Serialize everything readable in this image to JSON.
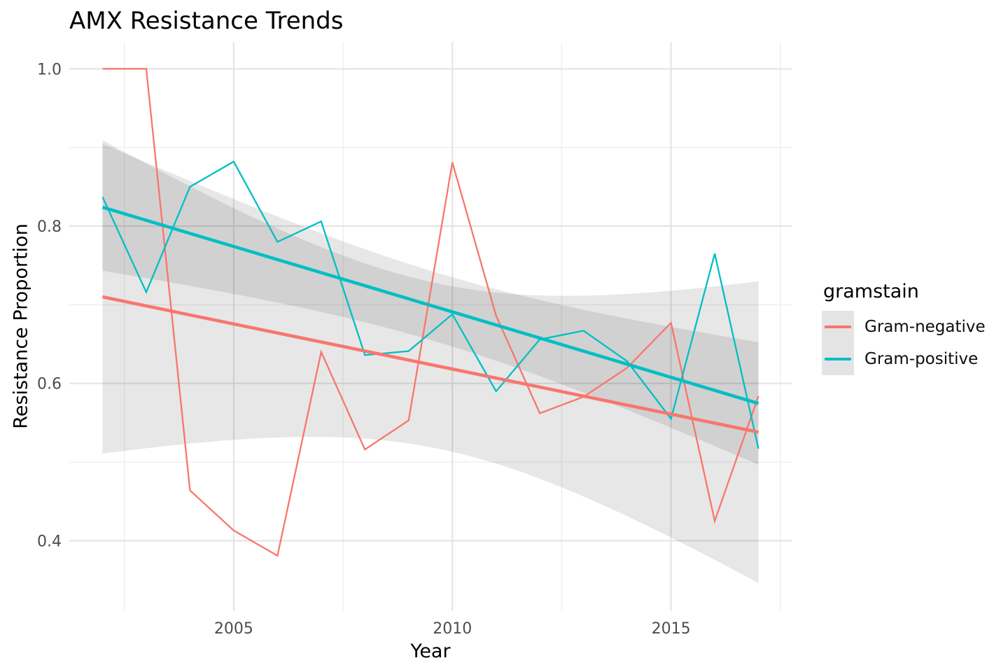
{
  "title": "AMX Resistance Trends",
  "colors": {
    "gram_negative": "#F8766D",
    "gram_positive": "#00BFC4",
    "axis_text": "#4D4D4D",
    "grid_major": "#E3E3E3",
    "grid_minor": "#EFEFEF",
    "ribbon": "rgba(0,0,0,0.095)"
  },
  "legend": {
    "title": "gramstain",
    "items": [
      {
        "label": "Gram-negative",
        "color": "#F8766D"
      },
      {
        "label": "Gram-positive",
        "color": "#00BFC4"
      }
    ]
  },
  "chart_data": {
    "type": "line",
    "title": "AMX Resistance Trends",
    "xlabel": "Year",
    "ylabel": "Resistance Proportion",
    "legend_title": "gramstain",
    "legend_position": "right",
    "grid": true,
    "x": [
      2002,
      2003,
      2004,
      2005,
      2006,
      2007,
      2008,
      2009,
      2010,
      2011,
      2012,
      2013,
      2014,
      2015,
      2016,
      2017
    ],
    "series": [
      {
        "name": "Gram-negative",
        "color": "#F8766D",
        "values": [
          1.0,
          1.0,
          0.464,
          0.413,
          0.381,
          0.64,
          0.516,
          0.553,
          0.881,
          0.686,
          0.562,
          0.583,
          0.62,
          0.677,
          0.425,
          0.584
        ]
      },
      {
        "name": "Gram-positive",
        "color": "#00BFC4",
        "values": [
          0.837,
          0.716,
          0.85,
          0.882,
          0.78,
          0.806,
          0.636,
          0.641,
          0.688,
          0.59,
          0.656,
          0.667,
          0.628,
          0.555,
          0.765,
          0.517
        ]
      }
    ],
    "trend_lines": [
      {
        "name": "Gram-negative",
        "color": "#F8766D",
        "x_start": 2002,
        "x_end": 2017,
        "y_start": 0.71,
        "y_end": 0.538,
        "ci_halfwidth_mid": 0.105,
        "ci_spread_per_year": 0.022
      },
      {
        "name": "Gram-positive",
        "color": "#00BFC4",
        "x_start": 2002,
        "x_end": 2017,
        "y_start": 0.824,
        "y_end": 0.5745,
        "ci_halfwidth_mid": 0.044,
        "ci_spread_per_year": 0.0088
      }
    ],
    "ci_center_year": 2009.7,
    "x_ticks": {
      "values": [
        2005,
        2010,
        2015
      ],
      "labels": [
        "2005",
        "2010",
        "2015"
      ]
    },
    "y_ticks": {
      "values": [
        1.0,
        0.8,
        0.6,
        0.4
      ],
      "labels": [
        "1.0",
        "0.8",
        "0.6",
        "0.4"
      ]
    },
    "x_minor": [
      2002.5,
      2007.5,
      2012.5,
      2017.5
    ],
    "y_minor": [
      0.5,
      0.7,
      0.9
    ],
    "xlim": [
      2001.24,
      2017.76
    ],
    "ylim": [
      0.3105,
      1.0341
    ]
  }
}
